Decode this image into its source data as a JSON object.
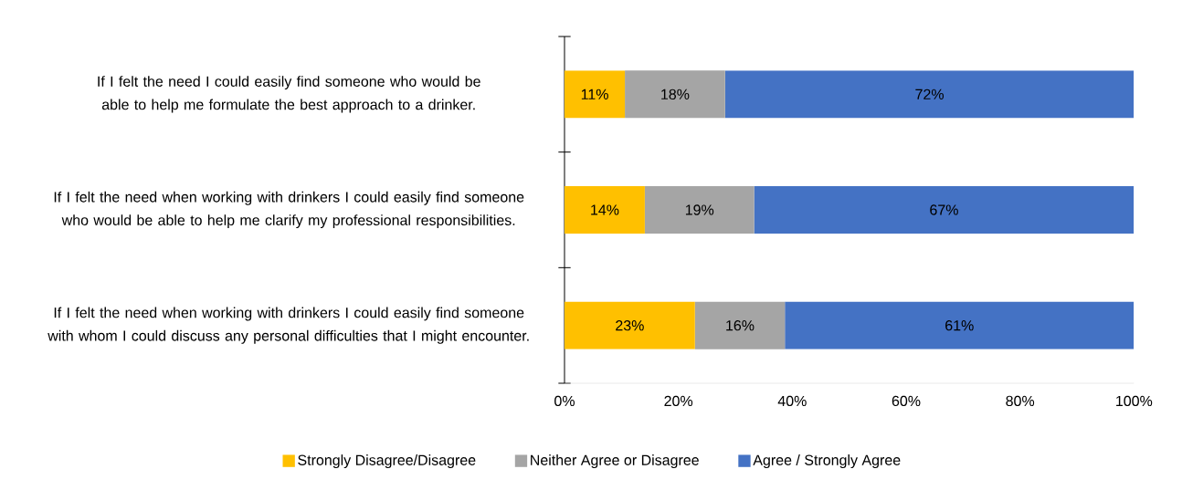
{
  "chart_data": {
    "type": "bar",
    "orientation": "horizontal",
    "stacked": true,
    "categories": [
      "If I felt the need I could easily find someone who would be able to help me formulate the best approach to a drinker.",
      "If I felt the need when working with drinkers I could easily find someone who would be able to help me clarify my professional responsibilities.",
      "If I felt the need when working with drinkers I could easily find someone with whom I could discuss any personal difficulties that I might encounter."
    ],
    "series": [
      {
        "name": "Strongly Disagree/Disagree",
        "color": "#ffc000",
        "values": [
          10.6,
          14.1,
          22.9
        ],
        "value_labels": [
          "11%",
          "14%",
          "23%"
        ]
      },
      {
        "name": "Neither Agree or Disagree",
        "color": "#a5a5a5",
        "values": [
          17.6,
          19.2,
          15.8
        ],
        "value_labels": [
          "18%",
          "19%",
          "16%"
        ]
      },
      {
        "name": "Agree / Strongly Agree",
        "color": "#4472c4",
        "values": [
          71.8,
          66.7,
          61.3
        ],
        "value_labels": [
          "72%",
          "67%",
          "61%"
        ]
      }
    ],
    "xlim": [
      0,
      100
    ],
    "xticks": [
      {
        "value": 0,
        "label": "0%"
      },
      {
        "value": 20,
        "label": "20%"
      },
      {
        "value": 40,
        "label": "40%"
      },
      {
        "value": 60,
        "label": "60%"
      },
      {
        "value": 80,
        "label": "80%"
      },
      {
        "value": 100,
        "label": "100%"
      }
    ],
    "legend": "bottom"
  }
}
